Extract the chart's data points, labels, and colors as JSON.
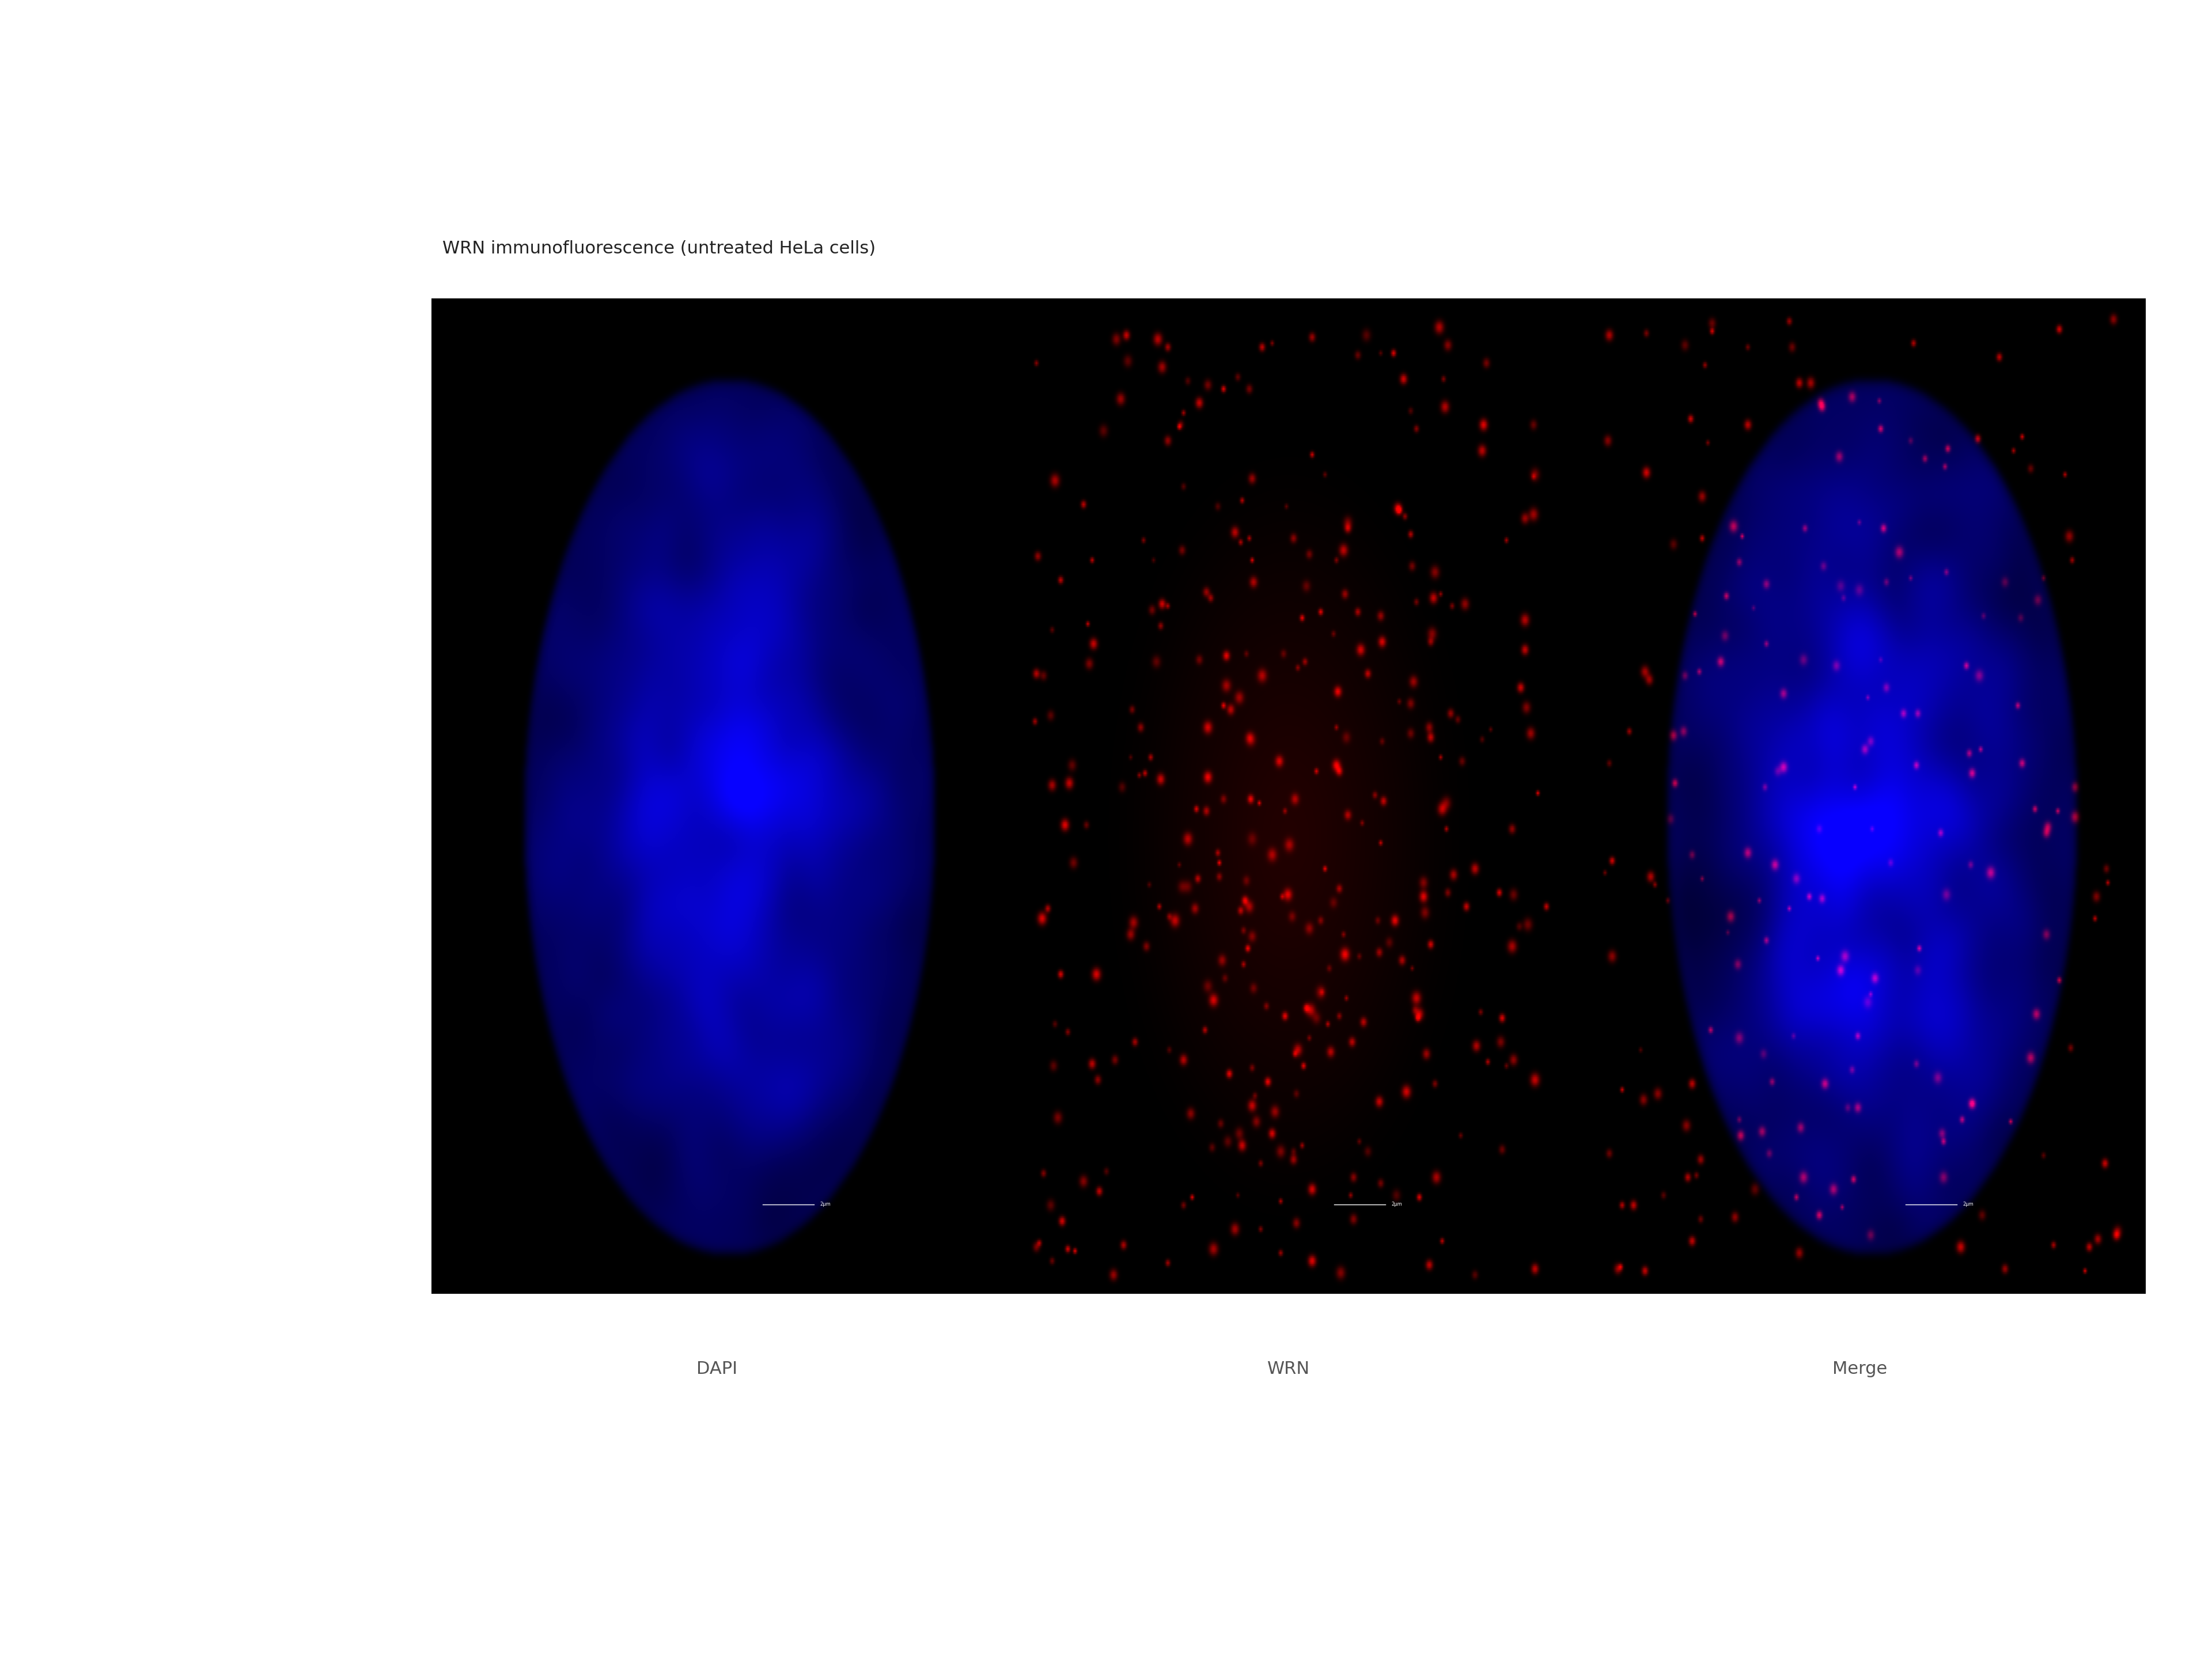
{
  "title": "WRN immunofluorescence (untreated HeLa cells)",
  "title_fontsize": 22,
  "title_color": "#222222",
  "background_color": "#ffffff",
  "labels": [
    "DAPI",
    "WRN",
    "Merge"
  ],
  "label_fontsize": 22,
  "label_color": "#555555",
  "scalebar_text": "2μm",
  "fig_width": 38.4,
  "fig_height": 28.8
}
